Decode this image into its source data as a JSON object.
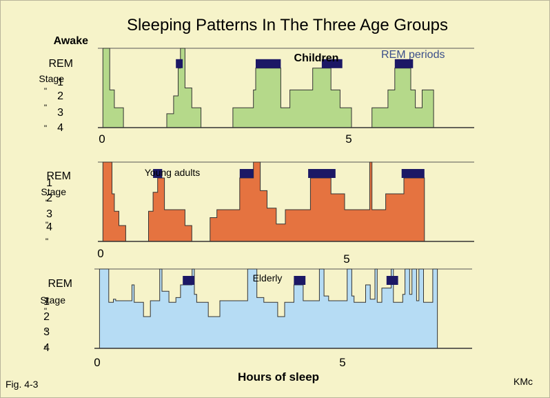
{
  "chart_data": {
    "type": "area",
    "title": "Sleeping Patterns In The Three Age Groups",
    "xlabel": "Hours of sleep",
    "figure_label": "Fig. 4-3",
    "credit": "KMc",
    "x_ticks": [
      "0",
      "5"
    ],
    "legend": "REM periods",
    "colors": {
      "rem": "#1c1865",
      "children": "#b5d98a",
      "young_adults": "#e57340",
      "elderly": "#b6dcf4",
      "legend_text": "#3b4f8a"
    },
    "panels": [
      {
        "name": "Children",
        "y_labels": [
          "Awake",
          "REM",
          "Stage",
          "1",
          "2",
          "3",
          "4"
        ],
        "y_label_marks": [
          "\"",
          "\"",
          "\""
        ],
        "xlim": [
          -0.05,
          8.05
        ],
        "segments": [
          [
            [
              0,
              4
            ],
            [
              0,
              0
            ],
            [
              0.15,
              0
            ],
            [
              0.15,
              2.1
            ],
            [
              0.25,
              2.1
            ],
            [
              0.25,
              3
            ],
            [
              0.45,
              3
            ],
            [
              0.45,
              4
            ]
          ],
          [
            [
              1.4,
              4
            ],
            [
              1.4,
              3.3
            ],
            [
              1.55,
              3.3
            ],
            [
              1.55,
              2.4
            ],
            [
              1.65,
              2.4
            ],
            [
              1.65,
              1
            ],
            [
              1.7,
              1
            ],
            [
              1.7,
              0
            ],
            [
              1.8,
              0
            ],
            [
              1.8,
              2
            ],
            [
              1.95,
              2
            ],
            [
              1.95,
              3
            ],
            [
              2.15,
              3
            ],
            [
              2.15,
              4
            ]
          ],
          [
            [
              2.85,
              4
            ],
            [
              2.85,
              3
            ],
            [
              3.3,
              3
            ],
            [
              3.3,
              2.1
            ],
            [
              3.35,
              2.1
            ],
            [
              3.35,
              1
            ],
            [
              3.9,
              1
            ],
            [
              3.9,
              3
            ],
            [
              4.1,
              3
            ],
            [
              4.1,
              2.1
            ],
            [
              4.6,
              2.1
            ],
            [
              4.6,
              1
            ],
            [
              5.0,
              1
            ],
            [
              5.0,
              2.1
            ],
            [
              5.2,
              2.1
            ],
            [
              5.2,
              3
            ],
            [
              5.45,
              3
            ],
            [
              5.45,
              4
            ]
          ],
          [
            [
              5.9,
              4
            ],
            [
              5.9,
              3
            ],
            [
              6.25,
              3
            ],
            [
              6.25,
              2.1
            ],
            [
              6.4,
              2.1
            ],
            [
              6.4,
              1
            ],
            [
              6.75,
              1
            ],
            [
              6.75,
              2.1
            ],
            [
              6.85,
              2.1
            ],
            [
              6.85,
              3
            ],
            [
              7.0,
              3
            ],
            [
              7.0,
              2.1
            ],
            [
              7.25,
              2.1
            ],
            [
              7.25,
              4
            ]
          ]
        ],
        "rem_bars": [
          [
            1.6,
            1.75
          ],
          [
            3.35,
            3.9
          ],
          [
            4.8,
            5.25
          ],
          [
            6.4,
            6.8
          ]
        ]
      },
      {
        "name": "Young adults",
        "y_labels": [
          "REM",
          "Stage",
          "1",
          "2",
          "3",
          "4"
        ],
        "y_label_marks": [
          "\"",
          "\"",
          "\""
        ],
        "xlim": [
          -0.05,
          8.05
        ],
        "segments": [
          [
            [
              0,
              5
            ],
            [
              0,
              0
            ],
            [
              0.2,
              0
            ],
            [
              0.2,
              2
            ],
            [
              0.25,
              2
            ],
            [
              0.25,
              3.1
            ],
            [
              0.35,
              3.1
            ],
            [
              0.35,
              4
            ],
            [
              0.5,
              4
            ],
            [
              0.5,
              5
            ]
          ],
          [
            [
              1.0,
              5
            ],
            [
              1.0,
              3.1
            ],
            [
              1.1,
              3.1
            ],
            [
              1.1,
              1.9
            ],
            [
              1.2,
              1.9
            ],
            [
              1.2,
              1
            ],
            [
              1.35,
              1
            ],
            [
              1.35,
              3
            ],
            [
              1.8,
              3
            ],
            [
              1.8,
              4
            ],
            [
              1.95,
              4
            ],
            [
              1.95,
              5
            ]
          ],
          [
            [
              2.35,
              5
            ],
            [
              2.35,
              3.5
            ],
            [
              2.5,
              3.5
            ],
            [
              2.5,
              3
            ],
            [
              3.0,
              3
            ],
            [
              3.0,
              1
            ],
            [
              3.3,
              1
            ],
            [
              3.3,
              0
            ],
            [
              3.45,
              0
            ],
            [
              3.45,
              1.8
            ],
            [
              3.6,
              1.8
            ],
            [
              3.6,
              2.9
            ],
            [
              3.8,
              2.9
            ],
            [
              3.8,
              3.9
            ],
            [
              4.0,
              3.9
            ],
            [
              4.0,
              3
            ],
            [
              4.55,
              3
            ],
            [
              4.55,
              1
            ],
            [
              5.0,
              1
            ],
            [
              5.0,
              2
            ],
            [
              5.3,
              2
            ],
            [
              5.3,
              3
            ],
            [
              5.85,
              3
            ],
            [
              5.85,
              0
            ],
            [
              5.9,
              0
            ],
            [
              5.9,
              3
            ],
            [
              6.2,
              3
            ],
            [
              6.2,
              2
            ],
            [
              6.6,
              2
            ],
            [
              6.6,
              1
            ],
            [
              7.05,
              1
            ],
            [
              7.05,
              5
            ]
          ]
        ],
        "rem_bars": [
          [
            1.1,
            1.3
          ],
          [
            3.0,
            3.3
          ],
          [
            4.5,
            5.1
          ],
          [
            6.55,
            7.05
          ]
        ]
      },
      {
        "name": "Elderly",
        "y_labels": [
          "REM",
          "Stage",
          "1",
          "2",
          "3",
          "4"
        ],
        "y_label_marks": [
          "\"",
          "\"",
          "\""
        ],
        "xlim": [
          -0.05,
          8.05
        ],
        "segments": [
          [
            [
              0,
              5
            ],
            [
              0,
              0
            ],
            [
              0.2,
              0
            ],
            [
              0.2,
              2.1
            ],
            [
              0.3,
              2.1
            ],
            [
              0.3,
              1.9
            ],
            [
              0.35,
              1.9
            ],
            [
              0.35,
              2
            ],
            [
              0.7,
              2
            ],
            [
              0.7,
              1
            ],
            [
              0.75,
              1
            ],
            [
              0.75,
              2.1
            ],
            [
              0.95,
              2.1
            ],
            [
              0.95,
              3
            ],
            [
              1.1,
              3
            ],
            [
              1.1,
              2
            ],
            [
              1.3,
              2
            ],
            [
              1.3,
              0
            ],
            [
              1.35,
              0
            ],
            [
              1.35,
              1.4
            ],
            [
              1.5,
              1.4
            ],
            [
              1.5,
              2.1
            ],
            [
              1.65,
              2.1
            ],
            [
              1.65,
              1.8
            ],
            [
              1.75,
              1.8
            ],
            [
              1.75,
              1
            ],
            [
              2.0,
              1
            ],
            [
              2.0,
              0
            ],
            [
              2.05,
              0
            ],
            [
              2.05,
              1.6
            ],
            [
              2.1,
              1.6
            ],
            [
              2.1,
              2.1
            ],
            [
              2.35,
              2.1
            ],
            [
              2.35,
              3
            ],
            [
              2.6,
              3
            ],
            [
              2.6,
              2
            ],
            [
              3.2,
              2
            ],
            [
              3.2,
              0
            ],
            [
              3.4,
              0
            ],
            [
              3.4,
              1.8
            ],
            [
              3.55,
              1.8
            ],
            [
              3.55,
              2.1
            ],
            [
              3.85,
              2.1
            ],
            [
              3.85,
              3
            ],
            [
              4.0,
              3
            ],
            [
              4.0,
              2.1
            ],
            [
              4.2,
              2.1
            ],
            [
              4.2,
              1
            ],
            [
              4.4,
              1
            ],
            [
              4.4,
              2
            ],
            [
              4.75,
              2
            ],
            [
              4.75,
              0
            ],
            [
              4.85,
              0
            ],
            [
              4.85,
              1.7
            ],
            [
              4.95,
              1.7
            ],
            [
              4.95,
              2
            ],
            [
              5.35,
              2
            ],
            [
              5.35,
              0
            ],
            [
              5.45,
              0
            ],
            [
              5.45,
              1.7
            ],
            [
              5.5,
              1.7
            ],
            [
              5.5,
              2.1
            ],
            [
              5.75,
              2.1
            ],
            [
              5.75,
              1
            ],
            [
              5.85,
              1
            ],
            [
              5.85,
              1.9
            ],
            [
              5.95,
              1.9
            ],
            [
              5.95,
              0
            ],
            [
              6.0,
              0
            ],
            [
              6.0,
              2.1
            ],
            [
              6.1,
              2.1
            ],
            [
              6.1,
              1.2
            ],
            [
              6.3,
              1.2
            ],
            [
              6.3,
              0
            ],
            [
              6.35,
              0
            ],
            [
              6.35,
              2.1
            ],
            [
              6.55,
              2.1
            ],
            [
              6.55,
              1.6
            ],
            [
              6.6,
              1.6
            ],
            [
              6.6,
              0
            ],
            [
              6.7,
              0
            ],
            [
              6.7,
              1.6
            ],
            [
              6.75,
              1.6
            ],
            [
              6.75,
              0
            ],
            [
              6.85,
              0
            ],
            [
              6.85,
              2
            ],
            [
              6.9,
              2
            ],
            [
              6.9,
              0
            ],
            [
              7.0,
              0
            ],
            [
              7.0,
              2.1
            ],
            [
              7.2,
              2.1
            ],
            [
              7.2,
              0
            ],
            [
              7.3,
              0
            ],
            [
              7.3,
              5
            ]
          ]
        ],
        "rem_bars": [
          [
            1.8,
            2.05
          ],
          [
            4.2,
            4.45
          ],
          [
            6.2,
            6.45
          ]
        ]
      }
    ]
  }
}
